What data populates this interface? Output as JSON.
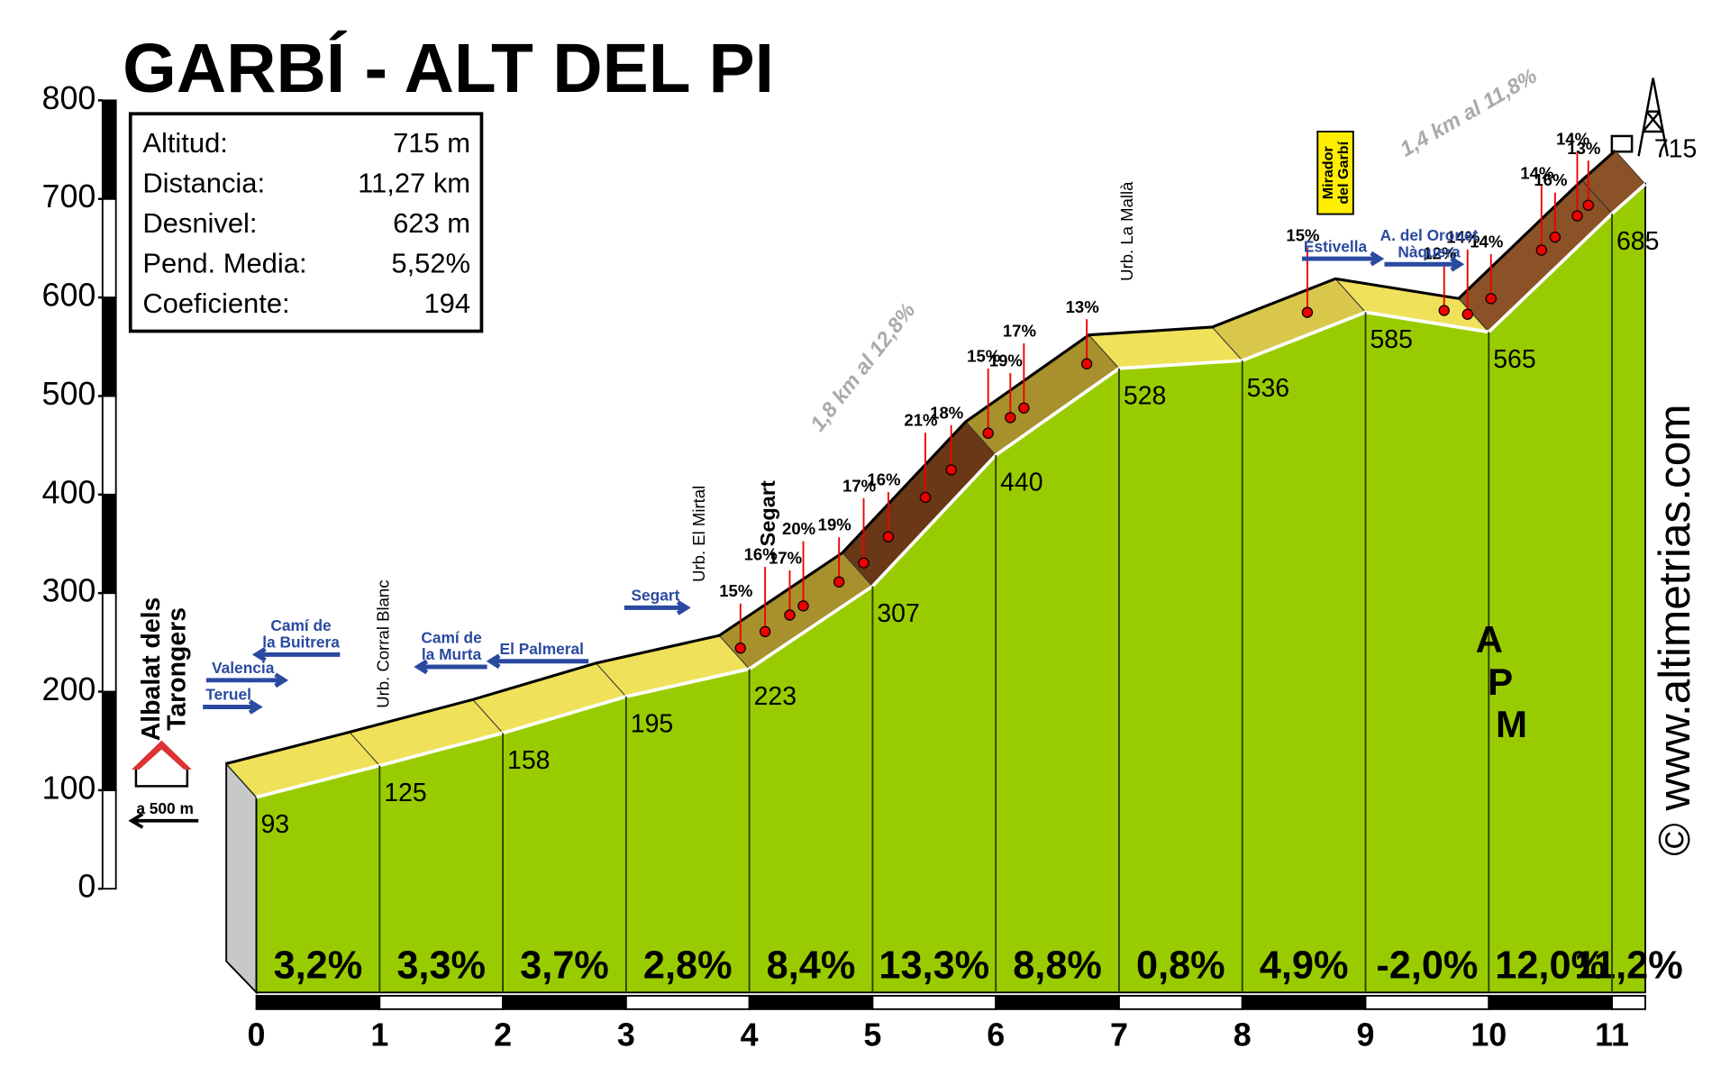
{
  "chart_data": {
    "type": "elevation-profile",
    "title": "GARBÍ - ALT DEL PI",
    "stats": [
      {
        "label": "Altitud:",
        "value": "715 m"
      },
      {
        "label": "Distancia:",
        "value": "11,27 km"
      },
      {
        "label": "Desnivel:",
        "value": "623 m"
      },
      {
        "label": "Pend. Media:",
        "value": "5,52%"
      },
      {
        "label": "Coeficiente:",
        "value": "194"
      }
    ],
    "x": [
      0,
      1,
      2,
      3,
      4,
      5,
      6,
      7,
      8,
      9,
      10,
      11,
      11.27
    ],
    "values": [
      93,
      125,
      158,
      195,
      223,
      307,
      440,
      528,
      536,
      585,
      565,
      685,
      715
    ],
    "xlim": [
      0,
      11.27
    ],
    "xticks": [
      0,
      1,
      2,
      3,
      4,
      5,
      6,
      7,
      8,
      9,
      10,
      11
    ],
    "ylim": [
      0,
      800
    ],
    "yticks": [
      0,
      100,
      200,
      300,
      400,
      500,
      600,
      700,
      800
    ],
    "gradients": {
      "values": [
        3.2,
        3.3,
        3.7,
        2.8,
        8.4,
        13.3,
        8.8,
        0.8,
        4.9,
        -2.0,
        12.0,
        11.2
      ],
      "value_labels": [
        "3,2%",
        "3,3%",
        "3,7%",
        "2,8%",
        "8,4%",
        "13,3%",
        "8,8%",
        "0,8%",
        "4,9%",
        "-2,0%",
        "12,0%",
        "11,2%"
      ]
    },
    "spot_gradients": {
      "x": [
        4.05,
        4.25,
        4.45,
        4.56,
        4.85,
        5.05,
        5.25,
        5.55,
        5.76,
        6.06,
        6.24,
        6.35,
        6.86,
        8.65,
        9.76,
        9.95,
        10.14,
        10.55,
        10.66,
        10.84,
        10.93
      ],
      "values": [
        15,
        16,
        17,
        20,
        19,
        17,
        16,
        21,
        18,
        15,
        19,
        17,
        13,
        15,
        12,
        14,
        14,
        14,
        16,
        14,
        13
      ],
      "value_labels": [
        "15%",
        "16%",
        "17%",
        "20%",
        "19%",
        "17%",
        "16%",
        "21%",
        "18%",
        "15%",
        "19%",
        "17%",
        "13%",
        "15%",
        "12%",
        "14%",
        "14%",
        "14%",
        "16%",
        "14%",
        "13%"
      ]
    },
    "notes": [
      "1,8 km al 12,8%",
      "1,4 km al 11,8%"
    ],
    "start": {
      "lines": [
        "Albalat dels",
        "Tarongers"
      ],
      "distance": "a 500 m"
    },
    "signs": [
      {
        "lines": [
          "Teruel"
        ]
      },
      {
        "lines": [
          "Valencia"
        ]
      },
      {
        "lines": [
          "Camí de",
          "la Buitrera"
        ]
      },
      {
        "lines": [
          "Camí de",
          "la Murta"
        ]
      },
      {
        "lines": [
          "El Palmeral"
        ]
      },
      {
        "lines": [
          "Segart"
        ]
      },
      {
        "lines": [
          "Estivella"
        ]
      },
      {
        "lines": [
          "A. del Oronet",
          "Nàquera"
        ]
      }
    ],
    "places": [
      "Urb. Corral Blanc",
      "Urb. El Mirtal",
      "Segart",
      "Urb. La Mallà"
    ],
    "mirador": [
      "Mirador",
      "del Garbí"
    ],
    "logo": [
      "A",
      "P",
      "M"
    ],
    "credit": "© www.altimetrias.com"
  }
}
